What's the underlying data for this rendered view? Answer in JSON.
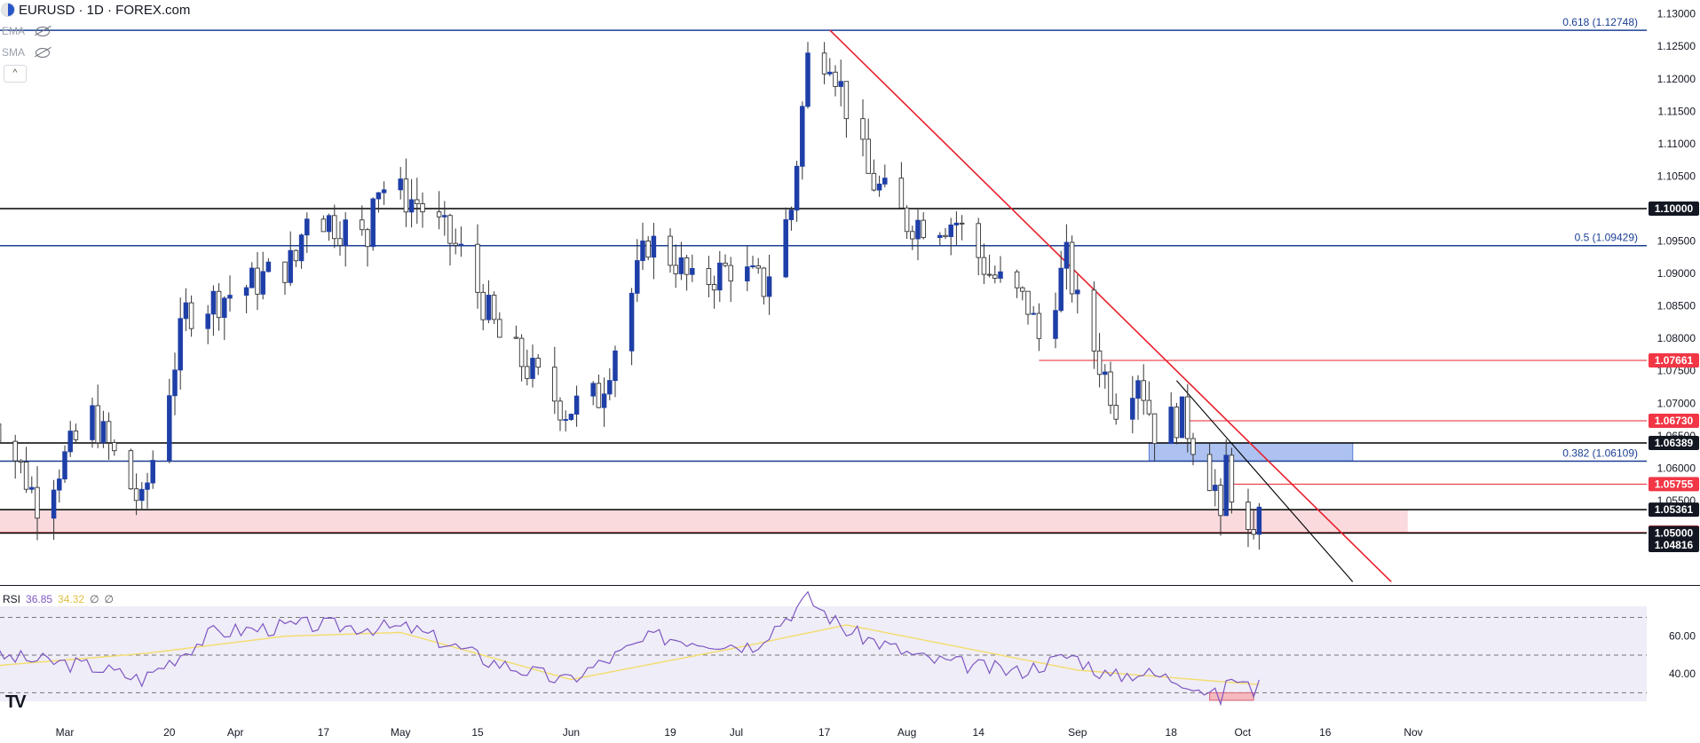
{
  "header": {
    "symbol_line": "EURUSD · 1D · FOREX.com",
    "ema_label": "EMA",
    "sma_label": "SMA",
    "collapse_glyph": "^"
  },
  "rsi": {
    "label": "RSI",
    "value": "36.85",
    "ma_value": "34.32",
    "extra1": "∅",
    "extra2": "∅",
    "logo": "TV"
  },
  "colors": {
    "bull": "#1e3fa8",
    "bear": "#ffffff",
    "wick": "#333333",
    "fib": "#1c3f94",
    "level": "#000000",
    "trend": "#e8202c",
    "zone_red": "#f9d6d9",
    "zone_blue": "#9fb8ef",
    "rsi_line": "#7e57c2",
    "rsi_ma": "#f3dc6b"
  },
  "chart_data": [
    {
      "type": "candlestick",
      "title": "EURUSD · 1D · FOREX.com",
      "ylim": [
        1.042,
        1.1305
      ],
      "y_ticks": [
        "1.13000",
        "1.12500",
        "1.12000",
        "1.11500",
        "1.11000",
        "1.10500",
        "1.10000",
        "1.09500",
        "1.09000",
        "1.08500",
        "1.08000",
        "1.07500",
        "1.07000",
        "1.06500",
        "1.06000",
        "1.05500",
        "1.05000"
      ],
      "x_ticks": [
        "Mar",
        "20",
        "Apr",
        "17",
        "May",
        "15",
        "Jun",
        "19",
        "Jul",
        "17",
        "Aug",
        "14",
        "Sep",
        "18",
        "Oct",
        "16",
        "Nov"
      ],
      "date_ticks": [
        "2023-03-01",
        "2023-03-20",
        "2023-04-01",
        "2023-04-17",
        "2023-05-01",
        "2023-05-15",
        "2023-06-01",
        "2023-06-19",
        "2023-07-01",
        "2023-07-17",
        "2023-08-01",
        "2023-08-14",
        "2023-09-01",
        "2023-09-18",
        "2023-10-01",
        "2023-10-16",
        "2023-11-01"
      ],
      "ohlc_anchors": [
        [
          "2023-02-15",
          1.07
        ],
        [
          "2023-02-24",
          1.055
        ],
        [
          "2023-03-06",
          1.068
        ],
        [
          "2023-03-15",
          1.054
        ],
        [
          "2023-03-23",
          1.084
        ],
        [
          "2023-04-03",
          1.088
        ],
        [
          "2023-04-12",
          1.092
        ],
        [
          "2023-04-14",
          1.1
        ],
        [
          "2023-04-25",
          1.095
        ],
        [
          "2023-04-26",
          1.104
        ],
        [
          "2023-05-04",
          1.101
        ],
        [
          "2023-05-12",
          1.093
        ],
        [
          "2023-05-19",
          1.08
        ],
        [
          "2023-05-31",
          1.069
        ],
        [
          "2023-06-06",
          1.071
        ],
        [
          "2023-06-15",
          1.095
        ],
        [
          "2023-06-20",
          1.092
        ],
        [
          "2023-06-23",
          1.088
        ],
        [
          "2023-06-30",
          1.091
        ],
        [
          "2023-07-06",
          1.088
        ],
        [
          "2023-07-11",
          1.1
        ],
        [
          "2023-07-14",
          1.123
        ],
        [
          "2023-07-18",
          1.124
        ],
        [
          "2023-07-25",
          1.105
        ],
        [
          "2023-08-01",
          1.098
        ],
        [
          "2023-08-10",
          1.098
        ],
        [
          "2023-08-16",
          1.09
        ],
        [
          "2023-08-23",
          1.085
        ],
        [
          "2023-08-25",
          1.08
        ],
        [
          "2023-08-30",
          1.092
        ],
        [
          "2023-09-01",
          1.085
        ],
        [
          "2023-09-08",
          1.07
        ],
        [
          "2023-09-12",
          1.075
        ],
        [
          "2023-09-15",
          1.066
        ],
        [
          "2023-09-20",
          1.068
        ],
        [
          "2023-09-25",
          1.059
        ],
        [
          "2023-09-26",
          1.057
        ],
        [
          "2023-09-27",
          1.05
        ],
        [
          "2023-09-28",
          1.061
        ],
        [
          "2023-09-29",
          1.057
        ],
        [
          "2023-10-02",
          1.049
        ],
        [
          "2023-10-03",
          1.047
        ],
        [
          "2023-10-04",
          1.054
        ]
      ],
      "fib_levels": [
        {
          "label": "0.618 (1.12748)",
          "value": 1.12748
        },
        {
          "label": "0.5 (1.09429)",
          "value": 1.09429
        },
        {
          "label": "0.382 (1.06109)",
          "value": 1.06109
        }
      ],
      "horizontal_levels": [
        {
          "label": "1.10000",
          "value": 1.1,
          "style": "black"
        },
        {
          "label": "1.07661",
          "value": 1.07661,
          "style": "red",
          "from": "2023-08-25"
        },
        {
          "label": "1.06730",
          "value": 1.0673,
          "style": "red",
          "from": "2023-09-21"
        },
        {
          "label": "1.06389",
          "value": 1.06389,
          "style": "black"
        },
        {
          "label": "1.05755",
          "value": 1.05755,
          "style": "red",
          "from": "2023-09-29"
        },
        {
          "label": "1.05361",
          "value": 1.05361,
          "style": "black"
        },
        {
          "label": "1.05008",
          "value": 1.05008,
          "style": "red"
        },
        {
          "label": "1.05000",
          "value": 1.05,
          "style": "black"
        },
        {
          "label": "1.04816",
          "value": 1.04816,
          "style": "last_price"
        }
      ],
      "zones": [
        {
          "from": 1.05008,
          "to": 1.05361,
          "color": "red",
          "start": "2023-02-14",
          "end": "2023-10-31"
        },
        {
          "from": 1.06109,
          "to": 1.06389,
          "color": "blue",
          "start": "2023-09-14",
          "end": "2023-10-21"
        }
      ],
      "trend_lines": [
        {
          "from": [
            "2023-07-18",
            1.1275
          ],
          "to": [
            "2023-10-28",
            1.0425
          ],
          "color": "red"
        },
        {
          "from": [
            "2023-09-19",
            1.0735
          ],
          "to": [
            "2023-10-21",
            1.0425
          ],
          "color": "black"
        }
      ]
    },
    {
      "type": "line",
      "title": "RSI",
      "ylim": [
        17,
        82
      ],
      "y_ticks": [
        "60.00",
        "40.00"
      ],
      "bands": [
        30,
        50,
        70
      ],
      "rsi_anchors": [
        [
          "2023-02-15",
          50
        ],
        [
          "2023-03-06",
          44
        ],
        [
          "2023-03-15",
          37
        ],
        [
          "2023-03-28",
          62
        ],
        [
          "2023-04-14",
          66
        ],
        [
          "2023-05-03",
          64
        ],
        [
          "2023-05-17",
          47
        ],
        [
          "2023-05-31",
          36
        ],
        [
          "2023-06-16",
          60
        ],
        [
          "2023-07-04",
          55
        ],
        [
          "2023-07-14",
          80
        ],
        [
          "2023-07-21",
          63
        ],
        [
          "2023-08-04",
          48
        ],
        [
          "2023-08-21",
          41
        ],
        [
          "2023-08-31",
          50
        ],
        [
          "2023-09-07",
          38
        ],
        [
          "2023-09-12",
          41
        ],
        [
          "2023-09-21",
          36
        ],
        [
          "2023-09-27",
          27
        ],
        [
          "2023-09-29",
          39
        ],
        [
          "2023-10-03",
          31
        ],
        [
          "2023-10-04",
          36.85
        ]
      ],
      "ma_anchors": [
        [
          "2023-02-15",
          44
        ],
        [
          "2023-03-16",
          51
        ],
        [
          "2023-04-10",
          60
        ],
        [
          "2023-05-01",
          62
        ],
        [
          "2023-06-01",
          37
        ],
        [
          "2023-07-03",
          55
        ],
        [
          "2023-07-21",
          66
        ],
        [
          "2023-08-11",
          54
        ],
        [
          "2023-09-01",
          42
        ],
        [
          "2023-10-04",
          34.32
        ]
      ],
      "oversold_box": {
        "start": "2023-09-25",
        "end": "2023-10-03",
        "low": 26,
        "high": 30
      }
    }
  ]
}
